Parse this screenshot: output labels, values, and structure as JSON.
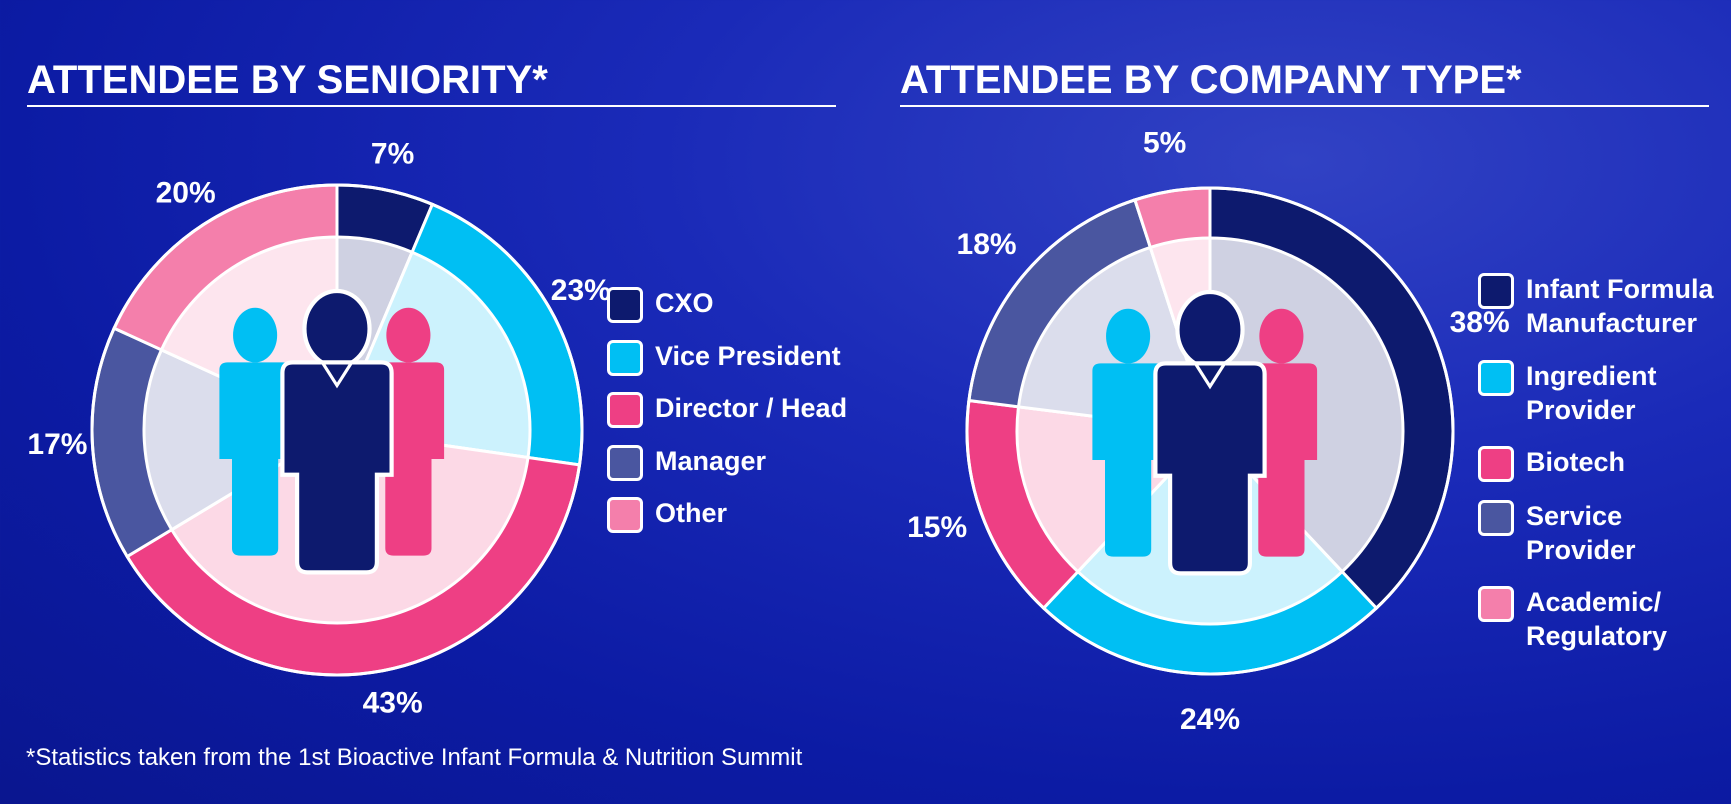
{
  "chart_data": [
    {
      "type": "pie",
      "title": "ATTENDEE BY SENIORITY*",
      "categories": [
        "CXO",
        "Vice President",
        "Director / Head",
        "Manager",
        "Other"
      ],
      "values": [
        7,
        23,
        43,
        17,
        20
      ],
      "value_labels": [
        "7%",
        "23%",
        "43%",
        "17%",
        "20%"
      ],
      "colors": [
        "#0d1a6e",
        "#00bff3",
        "#ee3f84",
        "#4a56a0",
        "#f47fab"
      ]
    },
    {
      "type": "pie",
      "title": "ATTENDEE BY COMPANY TYPE*",
      "categories": [
        "Infant Formula Manufacturer",
        "Ingredient Provider",
        "Biotech",
        "Service Provider",
        "Academic/ Regulatory"
      ],
      "values": [
        38,
        24,
        15,
        18,
        5
      ],
      "value_labels": [
        "38%",
        "24%",
        "15%",
        "18%",
        "5%"
      ],
      "colors": [
        "#0d1a6e",
        "#00bff3",
        "#ee3f84",
        "#4a56a0",
        "#f47fab"
      ]
    }
  ],
  "footnote": "*Statistics taken from the 1st Bioactive Infant Formula & Nutrition Summit"
}
